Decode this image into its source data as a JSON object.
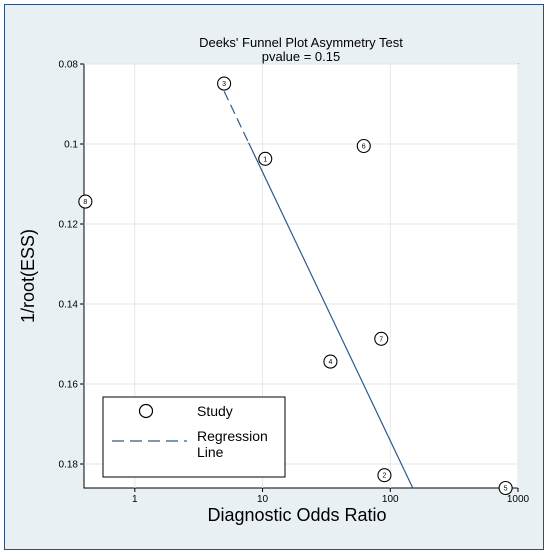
{
  "chart_data": {
    "type": "scatter",
    "title": "Deeks' Funnel Plot Asymmetry Test",
    "subtitle": "pvalue  =   0.15",
    "xlabel": "Diagnostic Odds Ratio",
    "ylabel": "1/root(ESS)",
    "x_scale": "log",
    "xlim": [
      0.4,
      1000
    ],
    "ylim": [
      0.186,
      0.08
    ],
    "y_inverted": true,
    "x_ticks": [
      1,
      10,
      100,
      1000
    ],
    "x_tick_labels": [
      "1",
      "10",
      "100",
      "1000"
    ],
    "y_ticks": [
      0.08,
      0.1,
      0.12,
      0.14,
      0.16,
      0.18
    ],
    "y_tick_labels": [
      "0.08",
      "0.1",
      "0.12",
      "0.14",
      "0.16",
      "0.18"
    ],
    "grid": true,
    "series": [
      {
        "name": "Study",
        "points": [
          {
            "label": "1",
            "x": 10.5,
            "y": 0.1037
          },
          {
            "label": "2",
            "x": 90,
            "y": 0.1828
          },
          {
            "label": "3",
            "x": 5,
            "y": 0.0849
          },
          {
            "label": "4",
            "x": 34,
            "y": 0.1544
          },
          {
            "label": "5",
            "x": 800,
            "y": 0.186
          },
          {
            "label": "6",
            "x": 62,
            "y": 0.1005
          },
          {
            "label": "7",
            "x": 85,
            "y": 0.1487
          },
          {
            "label": "8",
            "x": 0.41,
            "y": 0.1144
          }
        ]
      },
      {
        "name": "Regression Line",
        "line": [
          {
            "x": 5,
            "y": 0.0868
          },
          {
            "x": 150,
            "y": 0.186
          }
        ]
      }
    ],
    "legend": {
      "placement": "bottom-left",
      "entries": [
        {
          "label": "Study",
          "marker": "circle"
        },
        {
          "label": "Regression\nLine",
          "marker": "dashed-line"
        }
      ]
    },
    "colors": {
      "background": "#e9f0f4",
      "frame": "#2f4f7a",
      "plot_background": "#ffffff",
      "regression_line": "#2c5c8a",
      "grid": "#e6e6e6"
    }
  }
}
